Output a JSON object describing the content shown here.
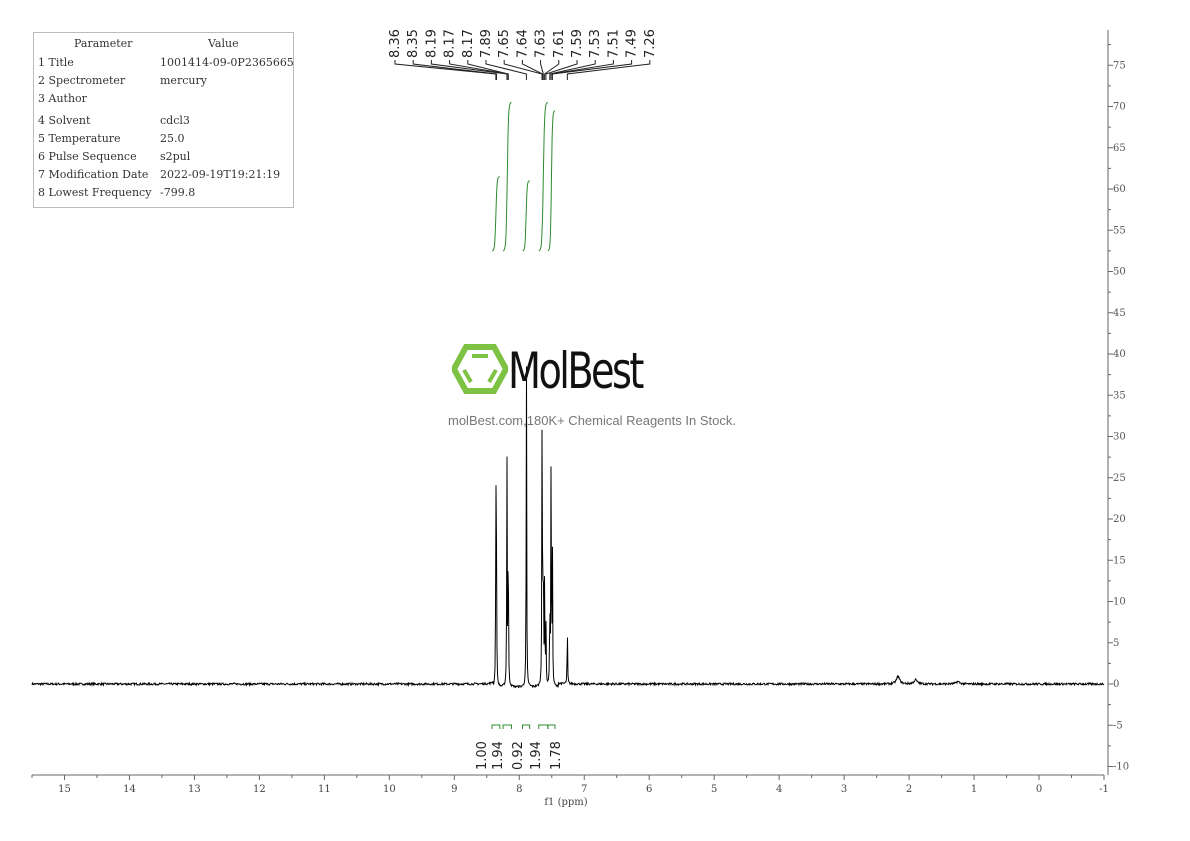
{
  "parameters": {
    "header": {
      "param": "Parameter",
      "value": "Value"
    },
    "rows": [
      {
        "key": "1 Title",
        "value": "1001414-09-0P2365665"
      },
      {
        "key": "2 Spectrometer",
        "value": "mercury"
      },
      {
        "key": "3 Author",
        "value": ""
      },
      {
        "key": "4 Solvent",
        "value": "cdcl3"
      },
      {
        "key": "5 Temperature",
        "value": "25.0"
      },
      {
        "key": "6 Pulse Sequence",
        "value": "s2pul"
      },
      {
        "key": "7 Modification Date",
        "value": "2022-09-19T19:21:19"
      },
      {
        "key": "8 Lowest Frequency",
        "value": "-799.8"
      }
    ]
  },
  "watermark": {
    "name": "MolBest",
    "tagline": "molBest.com,180K+ Chemical Reagents In Stock.",
    "color": "#7dc242"
  },
  "chart_data": {
    "type": "line",
    "xlabel": "f1 (ppm)",
    "xlim": [
      15.5,
      -1
    ],
    "ylim": [
      -11,
      79
    ],
    "x_ticks": [
      15,
      14,
      13,
      12,
      11,
      10,
      9,
      8,
      7,
      6,
      5,
      4,
      3,
      2,
      1,
      0,
      -1
    ],
    "y_ticks": [
      -10,
      -5,
      0,
      5,
      10,
      15,
      20,
      25,
      30,
      35,
      40,
      45,
      50,
      55,
      60,
      65,
      70,
      75
    ],
    "y_axis_side": "right",
    "line_color": "#000000",
    "integral_color": "#2e8b2e",
    "peaks": [
      {
        "ppm": 8.36,
        "height": 26
      },
      {
        "ppm": 8.35,
        "height": 14
      },
      {
        "ppm": 8.19,
        "height": 29
      },
      {
        "ppm": 8.17,
        "height": 22
      },
      {
        "ppm": 7.89,
        "height": 42.5
      },
      {
        "ppm": 7.65,
        "height": 29
      },
      {
        "ppm": 7.64,
        "height": 12
      },
      {
        "ppm": 7.63,
        "height": 15
      },
      {
        "ppm": 7.61,
        "height": 14
      },
      {
        "ppm": 7.59,
        "height": 8
      },
      {
        "ppm": 7.53,
        "height": 11
      },
      {
        "ppm": 7.51,
        "height": 30
      },
      {
        "ppm": 7.49,
        "height": 18
      },
      {
        "ppm": 7.26,
        "height": 7.4
      },
      {
        "ppm": 2.17,
        "height": 0.9
      },
      {
        "ppm": 1.9,
        "height": 0.5
      },
      {
        "ppm": 1.25,
        "height": 0.3
      }
    ],
    "peak_labels": [
      "8.36",
      "8.35",
      "8.19",
      "8.17",
      "8.17",
      "7.89",
      "7.65",
      "7.64",
      "7.63",
      "7.61",
      "7.59",
      "7.53",
      "7.51",
      "7.49",
      "7.26"
    ],
    "integrals": [
      {
        "from": 8.42,
        "to": 8.3,
        "value": "1.00",
        "top": 61.5,
        "bottom": 52.5
      },
      {
        "from": 8.25,
        "to": 8.12,
        "value": "1.94",
        "top": 70.5,
        "bottom": 52.5
      },
      {
        "from": 7.95,
        "to": 7.84,
        "value": "0.92",
        "top": 61,
        "bottom": 52.5
      },
      {
        "from": 7.7,
        "to": 7.56,
        "value": "1.94",
        "top": 70.5,
        "bottom": 52.5
      },
      {
        "from": 7.56,
        "to": 7.45,
        "value": "1.78",
        "top": 69.5,
        "bottom": 52.5
      }
    ]
  }
}
